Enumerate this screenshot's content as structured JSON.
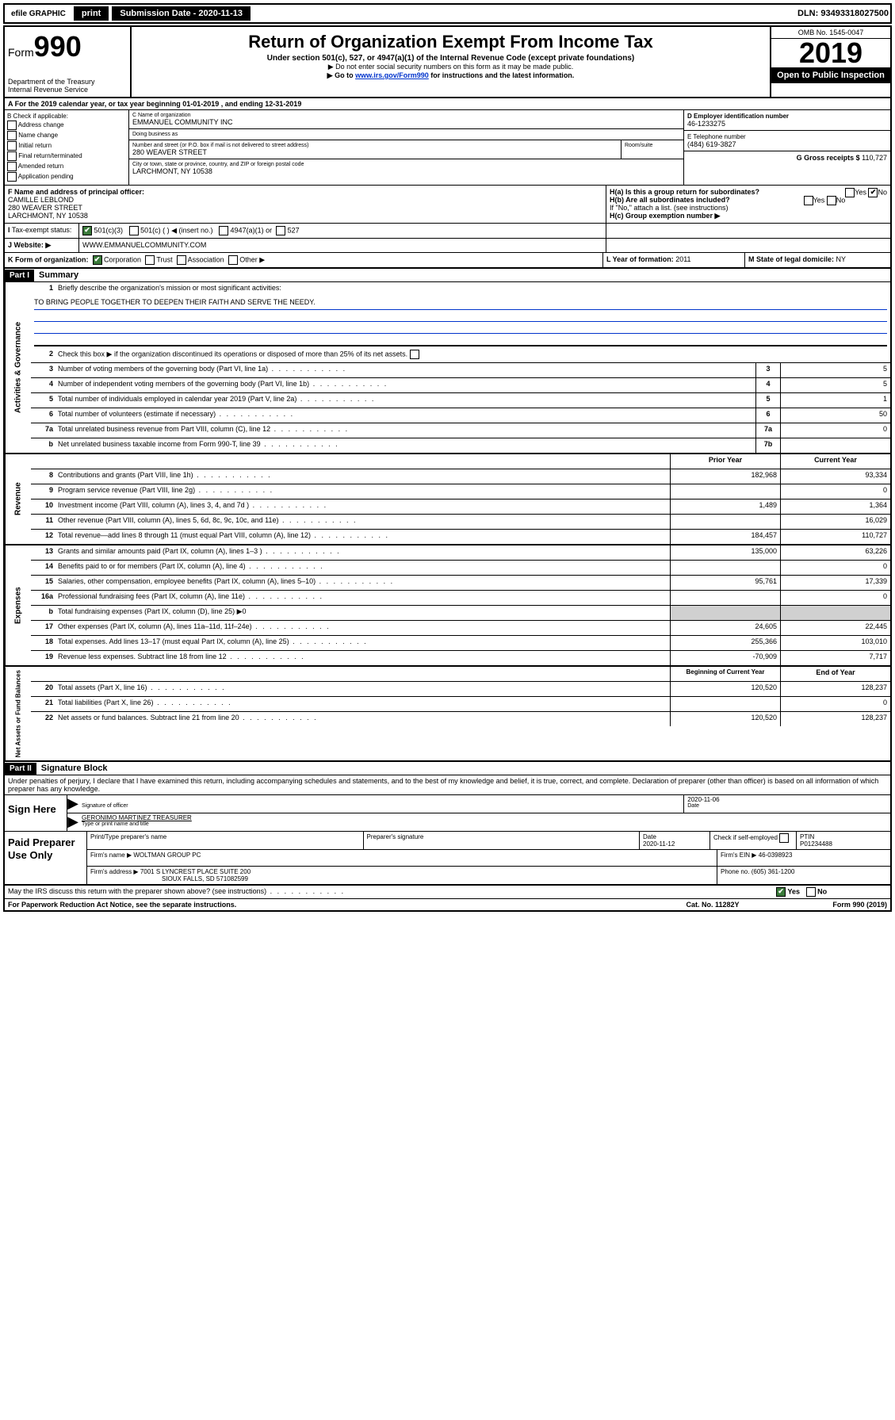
{
  "topbar": {
    "efile_label": "efile GRAPHIC",
    "print_btn": "print",
    "sub_date_label": "Submission Date - 2020-11-13",
    "dln": "DLN: 93493318027500"
  },
  "header": {
    "form_label": "Form",
    "form_number": "990",
    "dept": "Department of the Treasury",
    "irs": "Internal Revenue Service",
    "title": "Return of Organization Exempt From Income Tax",
    "subtitle": "Under section 501(c), 527, or 4947(a)(1) of the Internal Revenue Code (except private foundations)",
    "note1": "▶ Do not enter social security numbers on this form as it may be made public.",
    "note2_pre": "▶ Go to ",
    "note2_link": "www.irs.gov/Form990",
    "note2_post": " for instructions and the latest information.",
    "omb": "OMB No. 1545-0047",
    "year": "2019",
    "open": "Open to Public Inspection"
  },
  "period": {
    "text": "A For the 2019 calendar year, or tax year beginning 01-01-2019   , and ending 12-31-2019"
  },
  "boxB": {
    "heading": "B Check if applicable:",
    "opts": [
      "Address change",
      "Name change",
      "Initial return",
      "Final return/terminated",
      "Amended return",
      "Application pending"
    ]
  },
  "boxC": {
    "name_label": "C Name of organization",
    "name": "EMMANUEL COMMUNITY INC",
    "dba_label": "Doing business as",
    "dba": "",
    "addr_label": "Number and street (or P.O. box if mail is not delivered to street address)",
    "addr": "280 WEAVER STREET",
    "room_label": "Room/suite",
    "city_label": "City or town, state or province, country, and ZIP or foreign postal code",
    "city": "LARCHMONT, NY  10538"
  },
  "boxD": {
    "ein_label": "D Employer identification number",
    "ein": "46-1233275",
    "phone_label": "E Telephone number",
    "phone": "(484) 619-3827",
    "gross_label": "G Gross receipts $",
    "gross": "110,727"
  },
  "boxF": {
    "label": "F  Name and address of principal officer:",
    "name": "CAMILLE LEBLOND",
    "addr1": "280 WEAVER STREET",
    "addr2": "LARCHMONT, NY  10538"
  },
  "boxH": {
    "ha": "H(a)  Is this a group return for subordinates?",
    "hb": "H(b)  Are all subordinates included?",
    "hb_note": "If \"No,\" attach a list. (see instructions)",
    "hc": "H(c)  Group exemption number ▶",
    "yes": "Yes",
    "no": "No"
  },
  "taxExempt": {
    "label": "Tax-exempt status:",
    "c3": "501(c)(3)",
    "c": "501(c) (    ) ◀ (insert no.)",
    "a1": "4947(a)(1) or",
    "s527": "527"
  },
  "website": {
    "label": "Website: ▶",
    "value": "WWW.EMMANUELCOMMUNITY.COM"
  },
  "lineK": {
    "label": "K Form of organization:",
    "corp": "Corporation",
    "trust": "Trust",
    "assoc": "Association",
    "other": "Other ▶"
  },
  "lineL": {
    "label": "L Year of formation:",
    "value": "2011"
  },
  "lineM": {
    "label": "M State of legal domicile:",
    "value": "NY"
  },
  "part1": {
    "header": "Part I",
    "title": "Summary",
    "q1": "Briefly describe the organization's mission or most significant activities:",
    "mission": "TO BRING PEOPLE TOGETHER TO DEEPEN THEIR FAITH AND SERVE THE NEEDY.",
    "q2": "Check this box ▶         if the organization discontinued its operations or disposed of more than 25% of its net assets.",
    "prior_year": "Prior Year",
    "current_year": "Current Year",
    "beg_year": "Beginning of Current Year",
    "end_year": "End of Year"
  },
  "gov_lines": [
    {
      "n": "3",
      "t": "Number of voting members of the governing body (Part VI, line 1a)",
      "box": "3",
      "v": "5"
    },
    {
      "n": "4",
      "t": "Number of independent voting members of the governing body (Part VI, line 1b)",
      "box": "4",
      "v": "5"
    },
    {
      "n": "5",
      "t": "Total number of individuals employed in calendar year 2019 (Part V, line 2a)",
      "box": "5",
      "v": "1"
    },
    {
      "n": "6",
      "t": "Total number of volunteers (estimate if necessary)",
      "box": "6",
      "v": "50"
    },
    {
      "n": "7a",
      "t": "Total unrelated business revenue from Part VIII, column (C), line 12",
      "box": "7a",
      "v": "0"
    },
    {
      "n": "b",
      "t": "Net unrelated business taxable income from Form 990-T, line 39",
      "box": "7b",
      "v": ""
    }
  ],
  "rev_lines": [
    {
      "n": "8",
      "t": "Contributions and grants (Part VIII, line 1h)",
      "p": "182,968",
      "c": "93,334"
    },
    {
      "n": "9",
      "t": "Program service revenue (Part VIII, line 2g)",
      "p": "",
      "c": "0"
    },
    {
      "n": "10",
      "t": "Investment income (Part VIII, column (A), lines 3, 4, and 7d )",
      "p": "1,489",
      "c": "1,364"
    },
    {
      "n": "11",
      "t": "Other revenue (Part VIII, column (A), lines 5, 6d, 8c, 9c, 10c, and 11e)",
      "p": "",
      "c": "16,029"
    },
    {
      "n": "12",
      "t": "Total revenue—add lines 8 through 11 (must equal Part VIII, column (A), line 12)",
      "p": "184,457",
      "c": "110,727"
    }
  ],
  "exp_lines": [
    {
      "n": "13",
      "t": "Grants and similar amounts paid (Part IX, column (A), lines 1–3 )",
      "p": "135,000",
      "c": "63,226"
    },
    {
      "n": "14",
      "t": "Benefits paid to or for members (Part IX, column (A), line 4)",
      "p": "",
      "c": "0"
    },
    {
      "n": "15",
      "t": "Salaries, other compensation, employee benefits (Part IX, column (A), lines 5–10)",
      "p": "95,761",
      "c": "17,339"
    },
    {
      "n": "16a",
      "t": "Professional fundraising fees (Part IX, column (A), line 11e)",
      "p": "",
      "c": "0"
    },
    {
      "n": "b",
      "t": "Total fundraising expenses (Part IX, column (D), line 25) ▶0",
      "p": "",
      "c": "",
      "shaded": true
    },
    {
      "n": "17",
      "t": "Other expenses (Part IX, column (A), lines 11a–11d, 11f–24e)",
      "p": "24,605",
      "c": "22,445"
    },
    {
      "n": "18",
      "t": "Total expenses. Add lines 13–17 (must equal Part IX, column (A), line 25)",
      "p": "255,366",
      "c": "103,010"
    },
    {
      "n": "19",
      "t": "Revenue less expenses. Subtract line 18 from line 12",
      "p": "-70,909",
      "c": "7,717"
    }
  ],
  "net_lines": [
    {
      "n": "20",
      "t": "Total assets (Part X, line 16)",
      "p": "120,520",
      "c": "128,237"
    },
    {
      "n": "21",
      "t": "Total liabilities (Part X, line 26)",
      "p": "",
      "c": "0"
    },
    {
      "n": "22",
      "t": "Net assets or fund balances. Subtract line 21 from line 20",
      "p": "120,520",
      "c": "128,237"
    }
  ],
  "part2": {
    "header": "Part II",
    "title": "Signature Block",
    "penalty": "Under penalties of perjury, I declare that I have examined this return, including accompanying schedules and statements, and to the best of my knowledge and belief, it is true, correct, and complete. Declaration of preparer (other than officer) is based on all information of which preparer has any knowledge."
  },
  "sign": {
    "here": "Sign Here",
    "sig_label": "Signature of officer",
    "date_label": "Date",
    "date": "2020-11-06",
    "name": "GERONIMO MARTINEZ  TREASURER",
    "name_label": "Type or print name and title"
  },
  "paid": {
    "label": "Paid Preparer Use Only",
    "print_label": "Print/Type preparer's name",
    "sig_label": "Preparer's signature",
    "date_label": "Date",
    "date": "2020-11-12",
    "check_label": "Check         if self-employed",
    "ptin_label": "PTIN",
    "ptin": "P01234488",
    "firm_name_label": "Firm's name      ▶",
    "firm_name": "WOLTMAN GROUP PC",
    "firm_ein_label": "Firm's EIN ▶",
    "firm_ein": "46-0398923",
    "firm_addr_label": "Firm's address ▶",
    "firm_addr": "7001 S LYNCREST PLACE SUITE 200",
    "firm_city": "SIOUX FALLS, SD  571082599",
    "phone_label": "Phone no.",
    "phone": "(605) 361-1200"
  },
  "footer": {
    "discuss": "May the IRS discuss this return with the preparer shown above? (see instructions)",
    "yes": "Yes",
    "no": "No",
    "pra": "For Paperwork Reduction Act Notice, see the separate instructions.",
    "cat": "Cat. No. 11282Y",
    "form": "Form 990 (2019)"
  },
  "side_labels": {
    "gov": "Activities & Governance",
    "rev": "Revenue",
    "exp": "Expenses",
    "net": "Net Assets or Fund Balances"
  }
}
